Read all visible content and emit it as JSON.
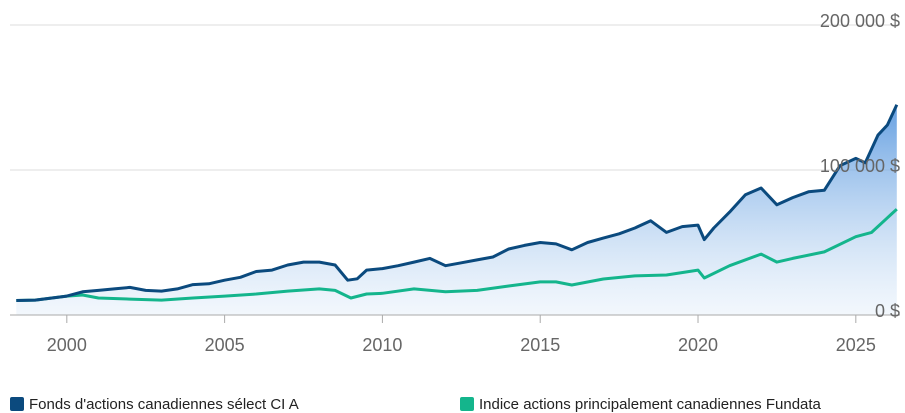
{
  "chart_data": {
    "type": "line",
    "xlim": [
      1998.2,
      2026.4
    ],
    "xticks": [
      2000,
      2005,
      2010,
      2015,
      2020,
      2025
    ],
    "ylim": [
      0,
      200000
    ],
    "yticks": [
      {
        "value": 0,
        "label": "0 $"
      },
      {
        "value": 100000,
        "label": "100 000 $"
      },
      {
        "value": 200000,
        "label": "200 000 $"
      }
    ],
    "grid": true,
    "legend": "bottom",
    "series": [
      {
        "name": "Fonds d'actions canadiennes sélect CI A",
        "color": "#0b4a7e",
        "area": true,
        "x": [
          1998.4,
          1999,
          2000,
          2000.5,
          2001,
          2001.5,
          2002,
          2002.5,
          2003,
          2003.5,
          2004,
          2004.5,
          2005,
          2005.5,
          2006,
          2006.5,
          2007,
          2007.5,
          2008,
          2008.5,
          2008.9,
          2009.2,
          2009.5,
          2010,
          2010.5,
          2011,
          2011.5,
          2012,
          2012.5,
          2013,
          2013.5,
          2014,
          2014.5,
          2015,
          2015.5,
          2016,
          2016.5,
          2017,
          2017.5,
          2018,
          2018.5,
          2019,
          2019.5,
          2020,
          2020.2,
          2020.5,
          2021,
          2021.5,
          2022,
          2022.5,
          2023,
          2023.5,
          2024,
          2024.5,
          2025,
          2025.3,
          2025.7,
          2026,
          2026.3
        ],
        "values": [
          10000,
          10300,
          13000,
          16000,
          17000,
          18000,
          19000,
          17000,
          16500,
          18000,
          21000,
          21500,
          24000,
          26000,
          30000,
          31000,
          34500,
          36500,
          36500,
          34500,
          24000,
          25000,
          31000,
          32000,
          34000,
          36500,
          39000,
          34000,
          36000,
          38000,
          40000,
          45500,
          48000,
          50000,
          49000,
          45000,
          50000,
          53000,
          56000,
          60000,
          65000,
          57000,
          61000,
          62000,
          52000,
          60000,
          71000,
          83000,
          87600,
          76000,
          81000,
          85000,
          86000,
          103000,
          108000,
          105000,
          124000,
          131000,
          145000
        ]
      },
      {
        "name": "Indice actions principalement canadiennes Fundata",
        "color": "#14b58c",
        "x": [
          1998.4,
          1999,
          2000,
          2000.5,
          2001,
          2002,
          2003,
          2004,
          2005,
          2006,
          2007,
          2008,
          2008.5,
          2009,
          2009.5,
          2010,
          2011,
          2012,
          2013,
          2014,
          2015,
          2015.5,
          2016,
          2017,
          2018,
          2019,
          2020,
          2020.2,
          2021,
          2022,
          2022.5,
          2023,
          2024,
          2025,
          2025.5,
          2026,
          2026.3
        ],
        "values": [
          10000,
          10300,
          13000,
          13800,
          11700,
          11000,
          10300,
          11700,
          13000,
          14500,
          16500,
          18000,
          17000,
          11700,
          14500,
          15000,
          18000,
          16000,
          17000,
          20000,
          22800,
          22800,
          20700,
          24800,
          27000,
          27600,
          31000,
          25500,
          34000,
          42000,
          36500,
          39000,
          43500,
          54000,
          57000,
          67000,
          73000
        ]
      }
    ]
  }
}
